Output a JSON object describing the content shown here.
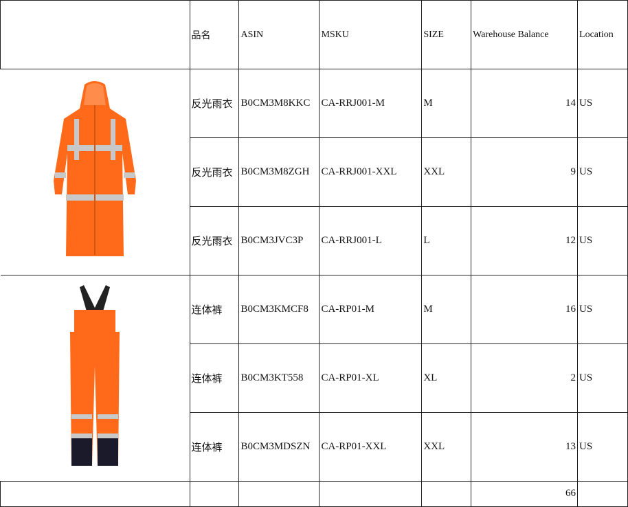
{
  "headers": {
    "image": "",
    "name": "品名",
    "asin": "ASIN",
    "msku": "MSKU",
    "size": "SIZE",
    "balance": "Warehouse Balance",
    "location": "Location"
  },
  "products": [
    {
      "image": "orange-reflective-raincoat",
      "rows": [
        {
          "name": "反光雨衣",
          "asin": "B0CM3M8KKC",
          "msku": "CA-RRJ001-M",
          "size": "M",
          "balance": "14",
          "location": "US"
        },
        {
          "name": "反光雨衣",
          "asin": "B0CM3M8ZGH",
          "msku": "CA-RRJ001-XXL",
          "size": "XXL",
          "balance": "9",
          "location": "US"
        },
        {
          "name": "反光雨衣",
          "asin": "B0CM3JVC3P",
          "msku": "CA-RRJ001-L",
          "size": "L",
          "balance": "12",
          "location": "US"
        }
      ]
    },
    {
      "image": "orange-bib-overalls",
      "rows": [
        {
          "name": "连体裤",
          "asin": "B0CM3KMCF8",
          "msku": "CA-RP01-M",
          "size": "M",
          "balance": "16",
          "location": "US"
        },
        {
          "name": "连体裤",
          "asin": "B0CM3KT558",
          "msku": "CA-RP01-XL",
          "size": "XL",
          "balance": "2",
          "location": "US"
        },
        {
          "name": "连体裤",
          "asin": "B0CM3MDSZN",
          "msku": "CA-RP01-XXL",
          "size": "XXL",
          "balance": "13",
          "location": "US"
        }
      ]
    }
  ],
  "total": "66",
  "colors": {
    "garment": "#ff6a1a",
    "reflective": "#c8c8c8",
    "strap": "#222222"
  }
}
